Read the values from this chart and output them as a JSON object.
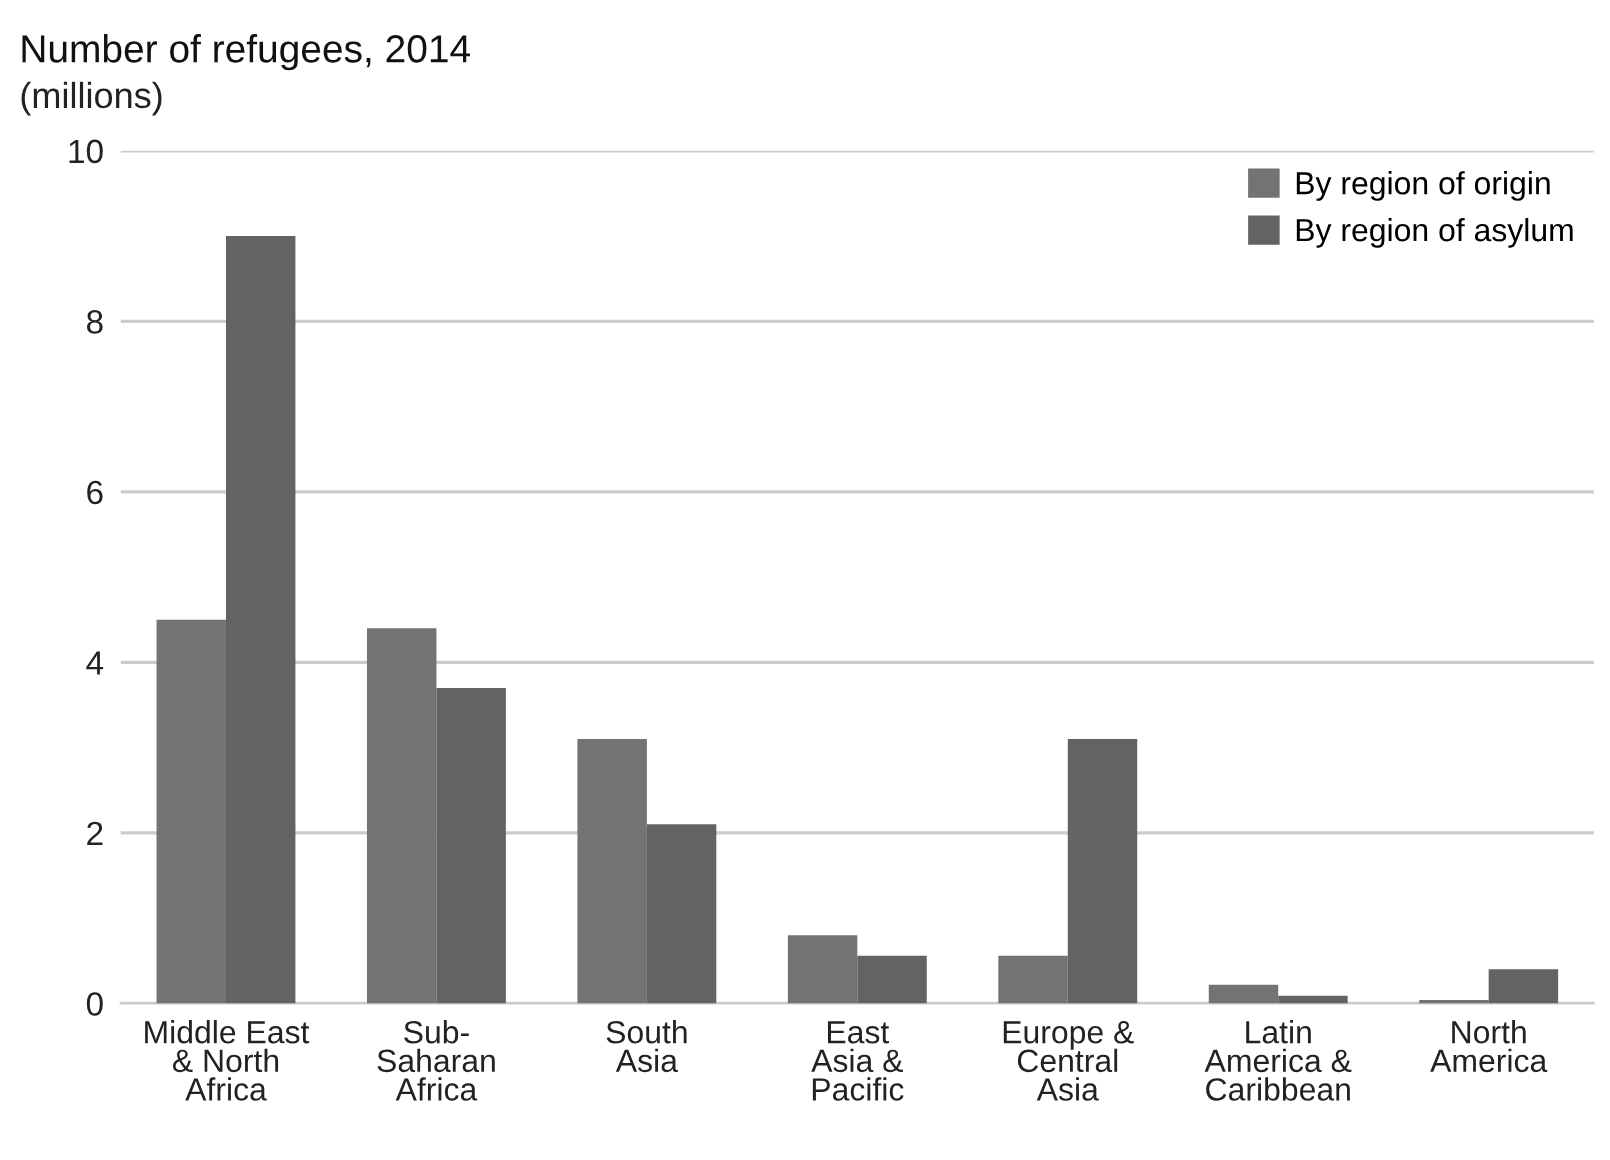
{
  "chart_data": {
    "type": "bar",
    "title": "Number of refugees, 2014",
    "subtitle": "(millions)",
    "categories": [
      "Middle East\n& North\nAfrica",
      "Sub-\nSaharan\nAfrica",
      "South\nAsia",
      "East\nAsia &\nPacific",
      "Europe &\nCentral\nAsia",
      "Latin\nAmerica &\nCaribbean",
      "North\nAmerica"
    ],
    "series": [
      {
        "name": "By region of origin",
        "color": "#737373",
        "values": [
          4.5,
          4.4,
          3.1,
          0.8,
          0.56,
          0.22,
          0.04
        ]
      },
      {
        "name": "By region of asylum",
        "color": "#636363",
        "values": [
          9.0,
          3.7,
          2.1,
          0.56,
          3.1,
          0.09,
          0.4
        ]
      }
    ],
    "ylim": [
      0,
      10
    ],
    "yticks": [
      0,
      2,
      4,
      6,
      8,
      10
    ],
    "grid": "y",
    "legend": "top right"
  }
}
